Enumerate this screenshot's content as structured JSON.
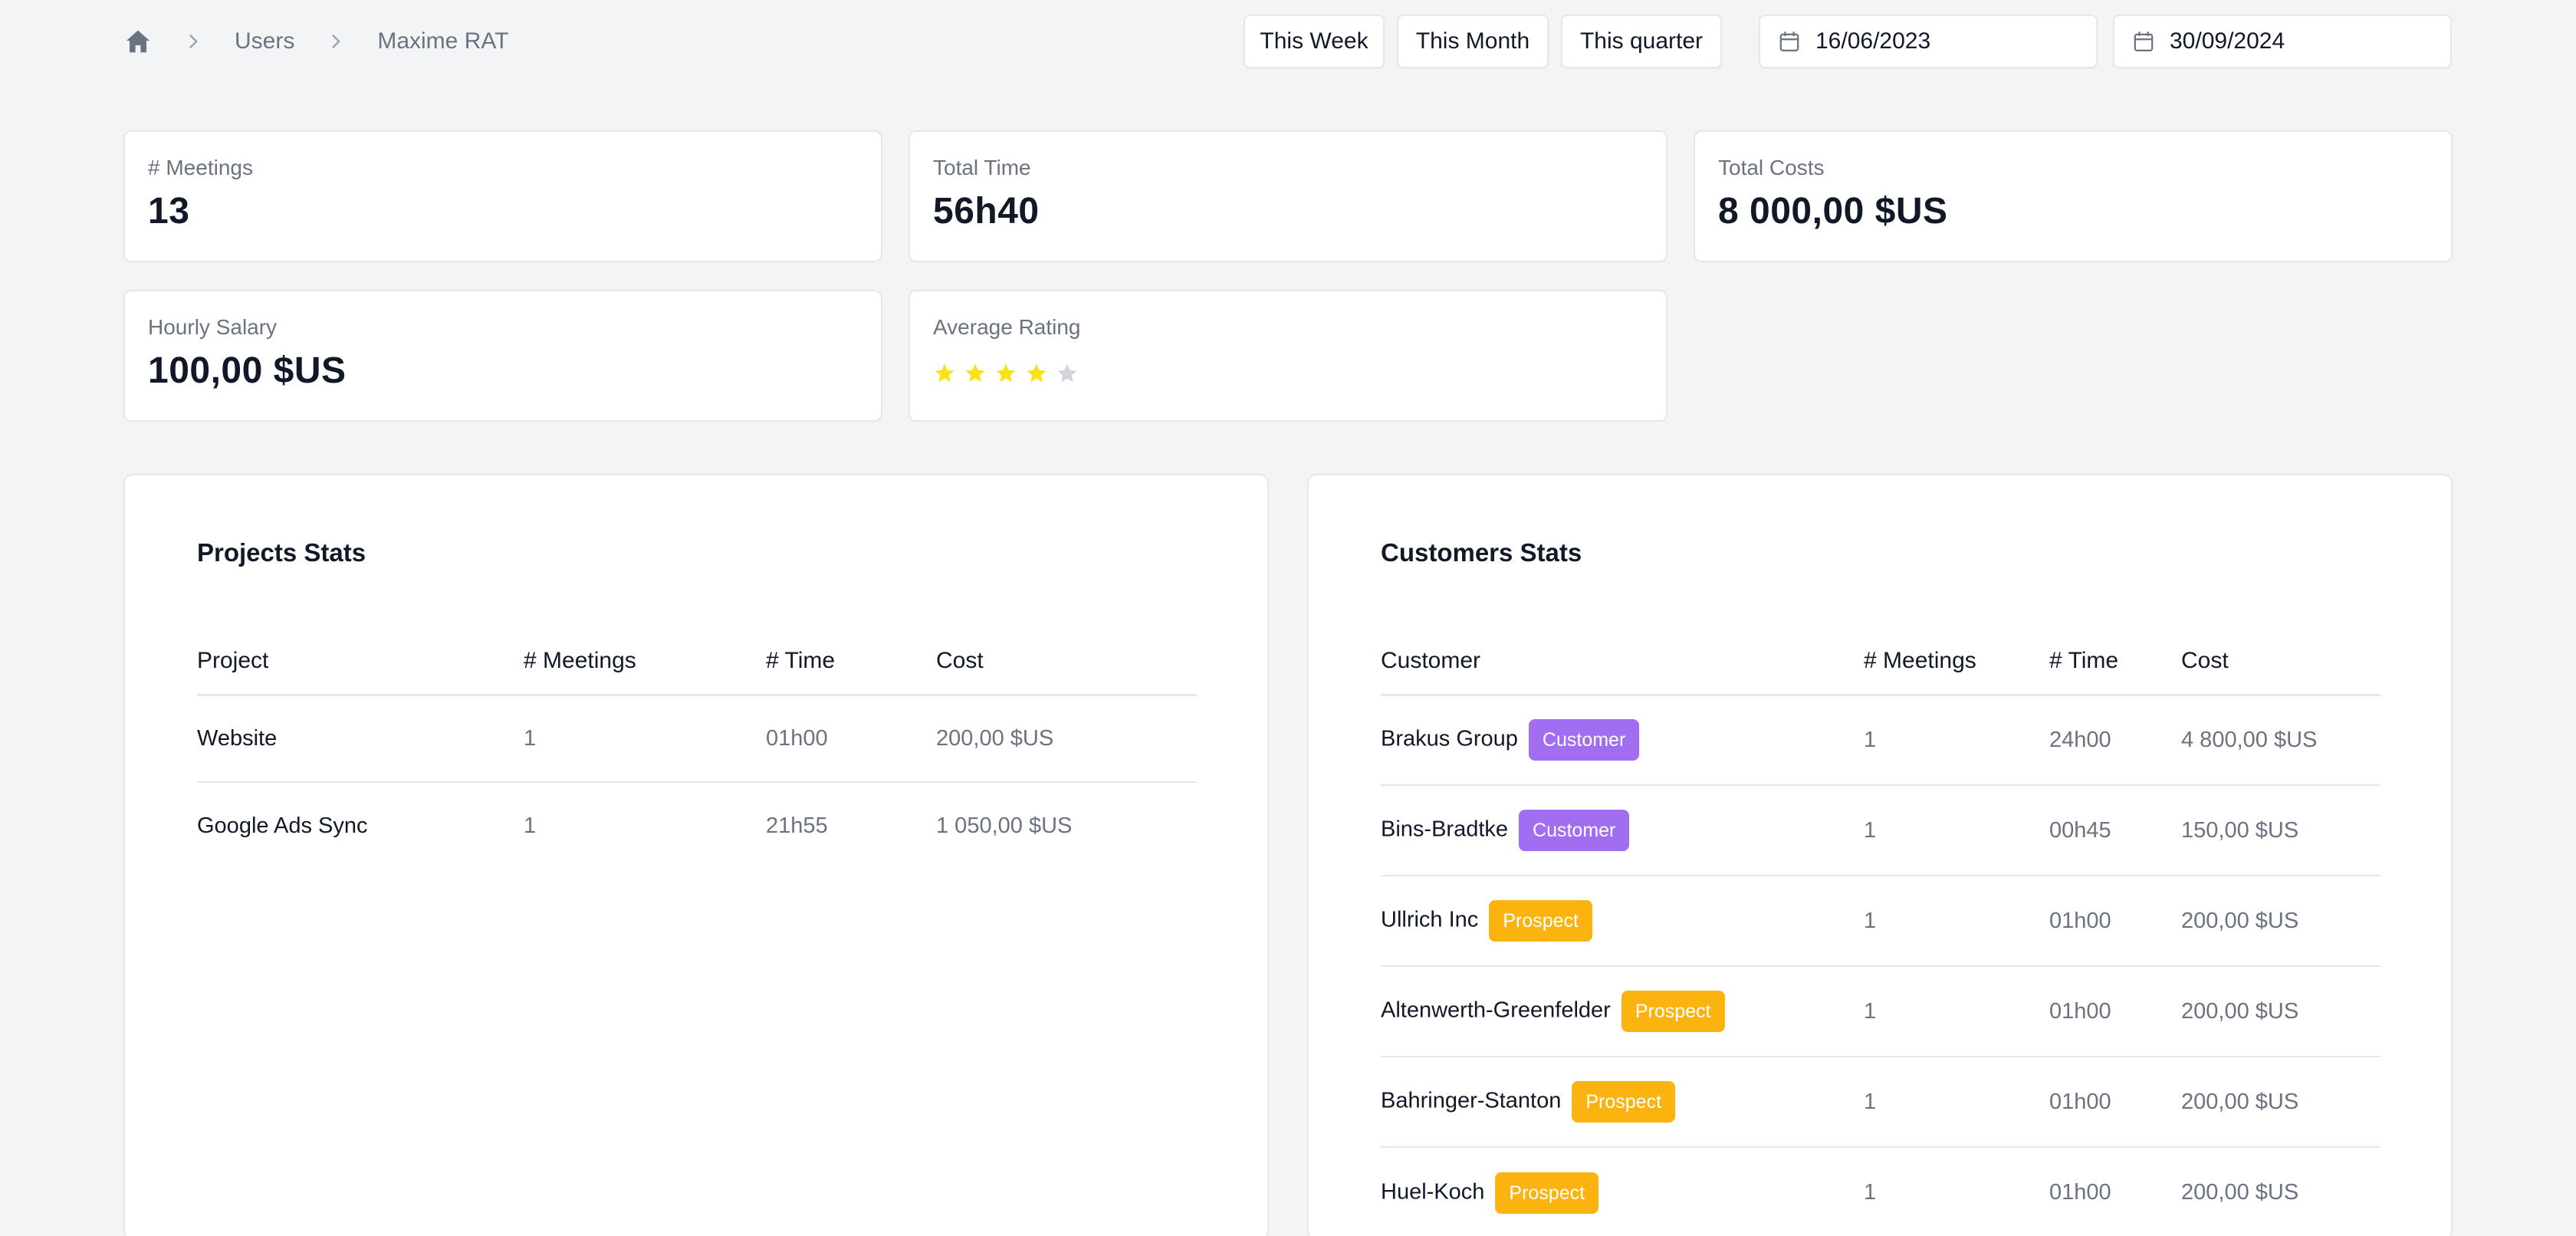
{
  "breadcrumb": {
    "items": [
      "Users",
      "Maxime RAT"
    ]
  },
  "ranges": {
    "week": "This Week",
    "month": "This Month",
    "quarter": "This quarter"
  },
  "dates": {
    "start": "16/06/2023",
    "end": "30/09/2024"
  },
  "stats": {
    "meetings": {
      "label": "# Meetings",
      "value": "13"
    },
    "total_time": {
      "label": "Total Time",
      "value": "56h40"
    },
    "total_costs": {
      "label": "Total Costs",
      "value": "8 000,00 $US"
    },
    "hourly_salary": {
      "label": "Hourly Salary",
      "value": "100,00 $US"
    },
    "average_rating": {
      "label": "Average Rating",
      "value": 4,
      "max": 5
    }
  },
  "colors": {
    "star_on": "#fbe217",
    "star_off": "#d1d5db",
    "customer_badge": "#a16ef2",
    "prospect_badge": "#fbb30f"
  },
  "projects": {
    "title": "Projects Stats",
    "headers": [
      "Project",
      "# Meetings",
      "# Time",
      "Cost"
    ],
    "rows": [
      {
        "name": "Website",
        "meetings": "1",
        "time": "01h00",
        "cost": "200,00 $US"
      },
      {
        "name": "Google Ads Sync",
        "meetings": "1",
        "time": "21h55",
        "cost": "1 050,00 $US"
      }
    ]
  },
  "customers": {
    "title": "Customers Stats",
    "headers": [
      "Customer",
      "# Meetings",
      "# Time",
      "Cost"
    ],
    "rows": [
      {
        "name": "Brakus Group",
        "badge": "Customer",
        "meetings": "1",
        "time": "24h00",
        "cost": "4 800,00 $US"
      },
      {
        "name": "Bins-Bradtke",
        "badge": "Customer",
        "meetings": "1",
        "time": "00h45",
        "cost": "150,00 $US"
      },
      {
        "name": "Ullrich Inc",
        "badge": "Prospect",
        "meetings": "1",
        "time": "01h00",
        "cost": "200,00 $US"
      },
      {
        "name": "Altenwerth-Greenfelder",
        "badge": "Prospect",
        "meetings": "1",
        "time": "01h00",
        "cost": "200,00 $US"
      },
      {
        "name": "Bahringer-Stanton",
        "badge": "Prospect",
        "meetings": "1",
        "time": "01h00",
        "cost": "200,00 $US"
      },
      {
        "name": "Huel-Koch",
        "badge": "Prospect",
        "meetings": "1",
        "time": "01h00",
        "cost": "200,00 $US"
      }
    ]
  }
}
